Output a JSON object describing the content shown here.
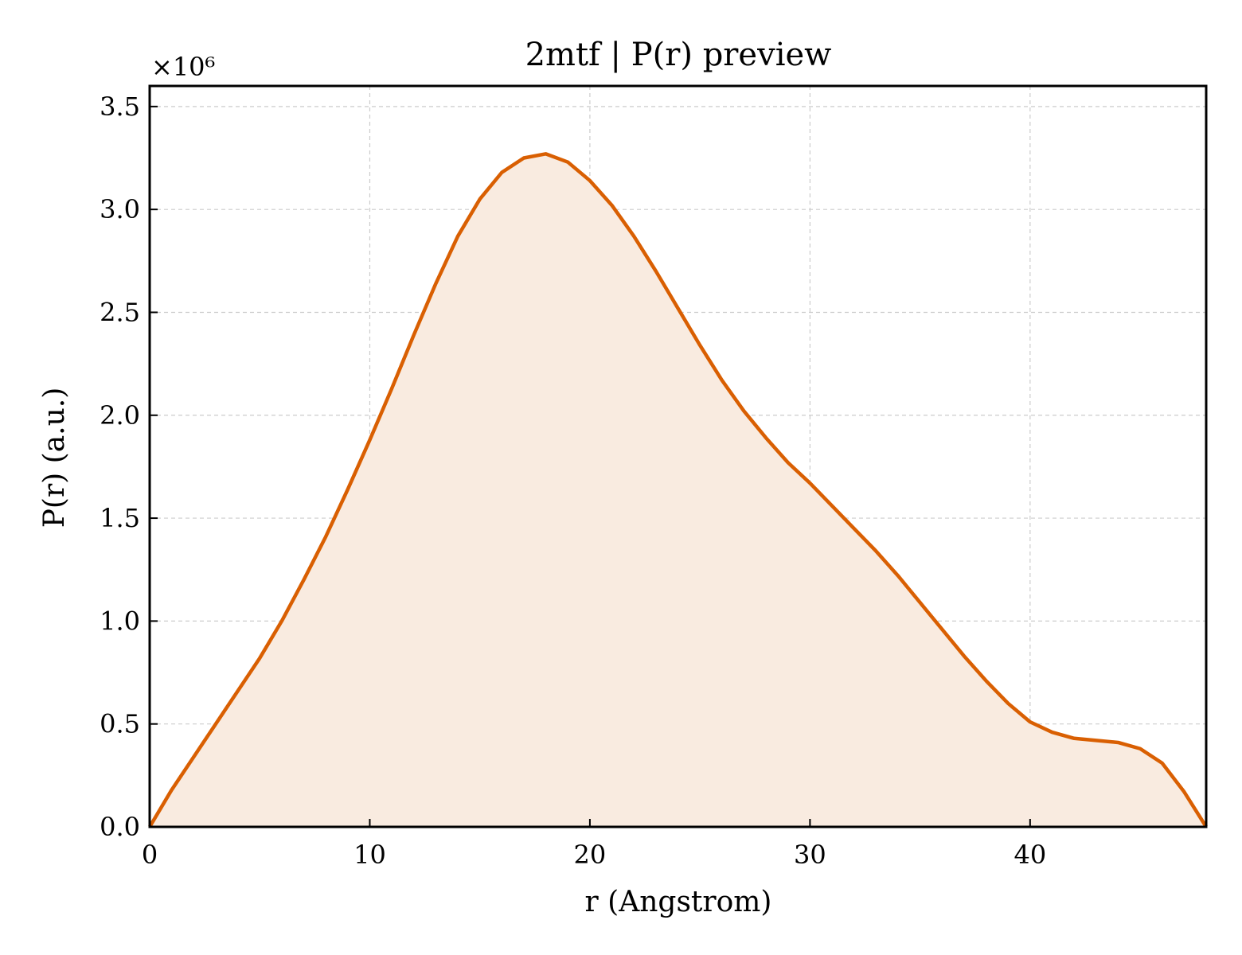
{
  "chart_data": {
    "type": "area",
    "title": "2mtf | P(r) preview",
    "xlabel": "r (Angstrom)",
    "ylabel": "P(r) (a.u.)",
    "y_offset_label": "×10⁶",
    "xlim": [
      0,
      48
    ],
    "ylim": [
      0,
      3.6
    ],
    "y_scale_factor": 1000000,
    "xticks": [
      0,
      10,
      20,
      30,
      40
    ],
    "xtick_labels": [
      "0",
      "10",
      "20",
      "30",
      "40"
    ],
    "yticks": [
      0,
      0.5,
      1.0,
      1.5,
      2.0,
      2.5,
      3.0,
      3.5
    ],
    "ytick_labels": [
      "0.0",
      "0.5",
      "1.0",
      "1.5",
      "2.0",
      "2.5",
      "3.0",
      "3.5"
    ],
    "grid": true,
    "line_color": "#d95f02",
    "fill_color": "#f9ebe0",
    "series": [
      {
        "x": [
          0,
          1,
          2,
          3,
          4,
          5,
          6,
          7,
          8,
          9,
          10,
          11,
          12,
          13,
          14,
          15,
          16,
          17,
          18,
          19,
          20,
          21,
          22,
          23,
          24,
          25,
          26,
          27,
          28,
          29,
          30,
          31,
          32,
          33,
          34,
          35,
          36,
          37,
          38,
          39,
          40,
          41,
          42,
          43,
          44,
          45,
          46,
          47,
          48
        ],
        "y": [
          0.0,
          0.18,
          0.34,
          0.5,
          0.66,
          0.82,
          1.0,
          1.2,
          1.41,
          1.64,
          1.88,
          2.13,
          2.39,
          2.64,
          2.87,
          3.05,
          3.18,
          3.25,
          3.27,
          3.23,
          3.14,
          3.02,
          2.87,
          2.7,
          2.52,
          2.34,
          2.17,
          2.02,
          1.89,
          1.77,
          1.67,
          1.56,
          1.45,
          1.34,
          1.22,
          1.09,
          0.96,
          0.83,
          0.71,
          0.6,
          0.51,
          0.46,
          0.43,
          0.42,
          0.41,
          0.38,
          0.31,
          0.17,
          0.0
        ]
      }
    ]
  }
}
